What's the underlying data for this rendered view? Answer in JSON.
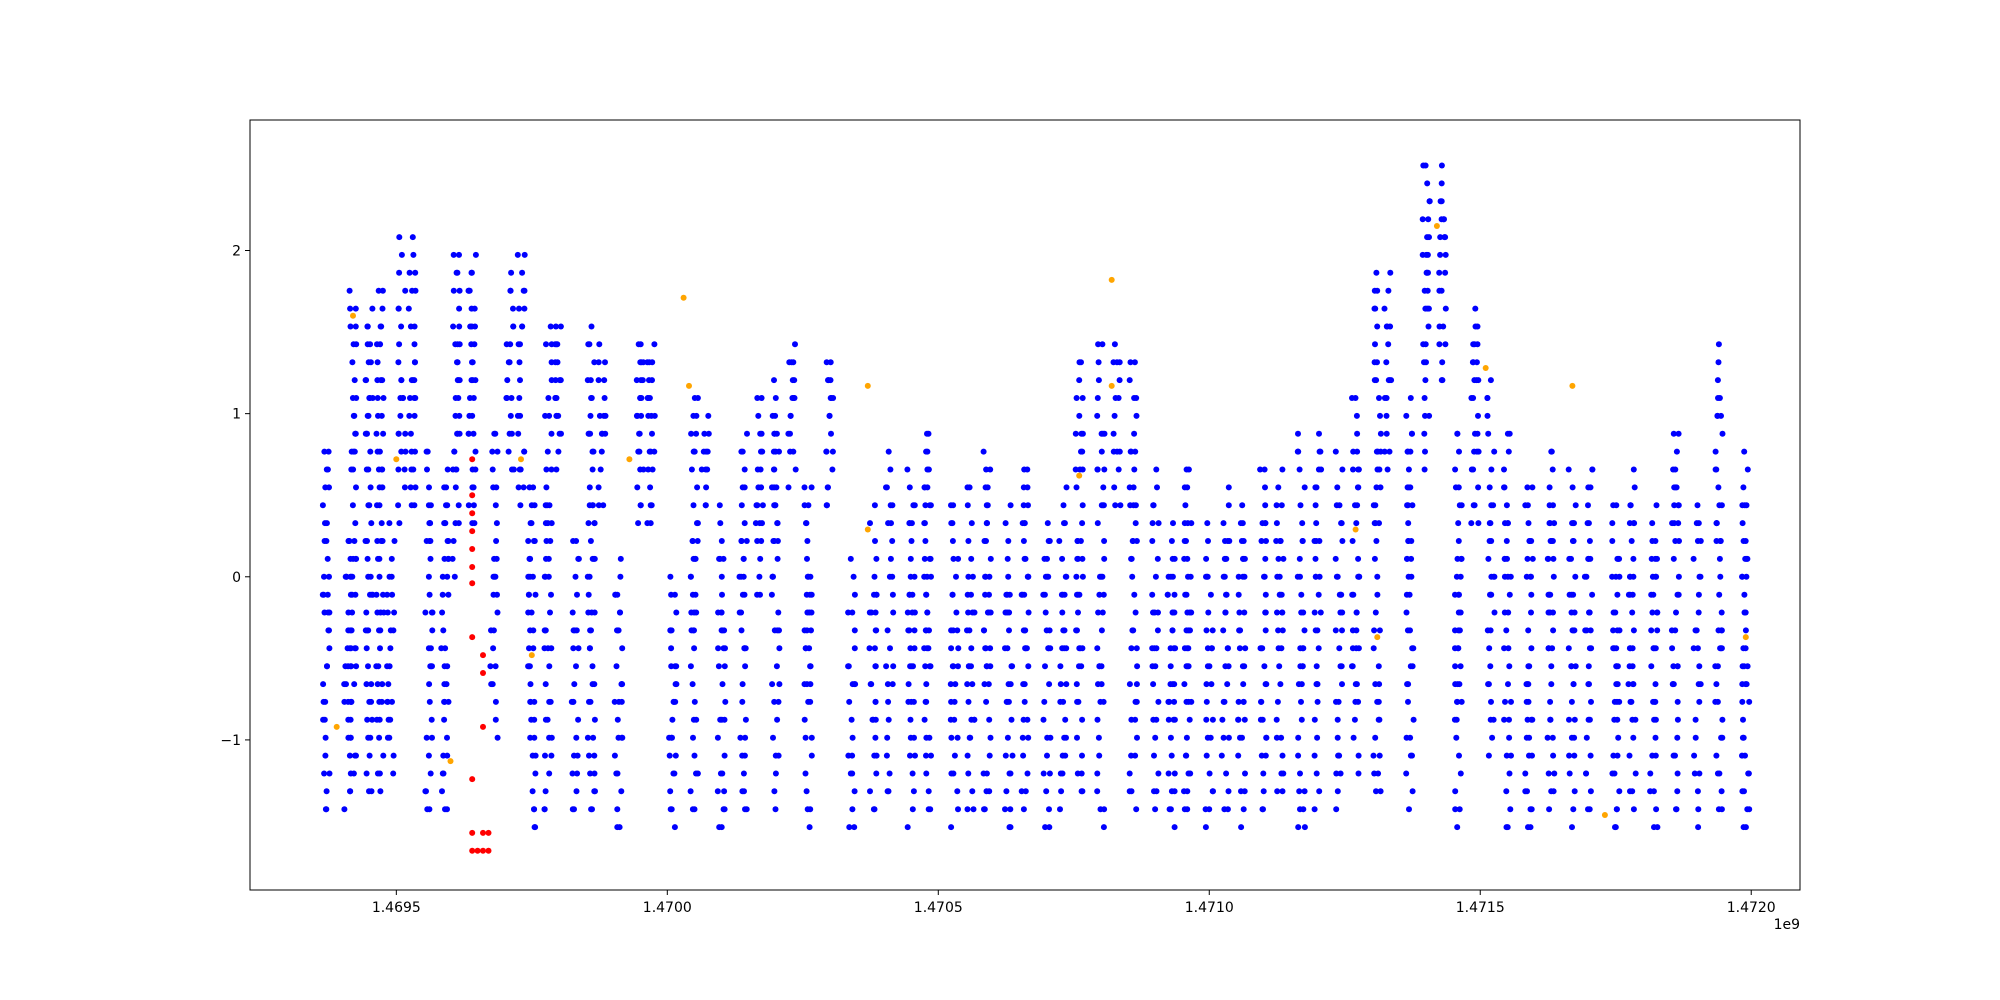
{
  "chart_data": {
    "type": "scatter",
    "title": "",
    "xlabel": "",
    "ylabel": "",
    "x_offset_label": "1e9",
    "xlim": [
      1469230000,
      1472090000
    ],
    "ylim": [
      -1.92,
      2.8
    ],
    "grid": false,
    "legend": "none",
    "x_ticks": [
      {
        "value": 1469500000,
        "label": "1.4695"
      },
      {
        "value": 1470000000,
        "label": "1.4700"
      },
      {
        "value": 1470500000,
        "label": "1.4705"
      },
      {
        "value": 1471000000,
        "label": "1.4710"
      },
      {
        "value": 1471500000,
        "label": "1.4715"
      },
      {
        "value": 1472000000,
        "label": "1.4720"
      }
    ],
    "y_ticks": [
      {
        "value": -1,
        "label": "−1"
      },
      {
        "value": 0,
        "label": "0"
      },
      {
        "value": 1,
        "label": "1"
      },
      {
        "value": 2,
        "label": "2"
      }
    ],
    "colors": {
      "normal": "#0000ff",
      "outlier_orange": "#ffa500",
      "outlier_red": "#ff0000"
    },
    "series": [
      {
        "color_key": "normal",
        "approximate": true,
        "day_columns": [
          {
            "x": 1469370000,
            "ymin": -1.45,
            "ymax": 0.85
          },
          {
            "x": 1469410000,
            "ymin": -1.45,
            "ymax": 0.3
          },
          {
            "x": 1469420000,
            "ymin": -1.4,
            "ymax": 1.82
          },
          {
            "x": 1469450000,
            "ymin": -1.4,
            "ymax": 1.75
          },
          {
            "x": 1469470000,
            "ymin": -1.35,
            "ymax": 1.82
          },
          {
            "x": 1469490000,
            "ymin": -1.3,
            "ymax": 0.4
          },
          {
            "x": 1469510000,
            "ymin": 0.3,
            "ymax": 2.15
          },
          {
            "x": 1469530000,
            "ymin": 0.4,
            "ymax": 2.15
          },
          {
            "x": 1469560000,
            "ymin": -1.45,
            "ymax": 0.85
          },
          {
            "x": 1469590000,
            "ymin": -1.45,
            "ymax": 0.7
          },
          {
            "x": 1469610000,
            "ymin": 0.0,
            "ymax": 2.05
          },
          {
            "x": 1469640000,
            "ymin": 0.3,
            "ymax": 2.05
          },
          {
            "x": 1469680000,
            "ymin": -1.0,
            "ymax": 0.95
          },
          {
            "x": 1469710000,
            "ymin": 0.6,
            "ymax": 1.95
          },
          {
            "x": 1469730000,
            "ymin": 0.4,
            "ymax": 2.05
          },
          {
            "x": 1469750000,
            "ymin": -1.55,
            "ymax": 0.6
          },
          {
            "x": 1469780000,
            "ymin": -1.5,
            "ymax": 1.6
          },
          {
            "x": 1469800000,
            "ymin": 0.6,
            "ymax": 1.6
          },
          {
            "x": 1469830000,
            "ymin": -1.5,
            "ymax": 0.3
          },
          {
            "x": 1469860000,
            "ymin": -1.5,
            "ymax": 1.6
          },
          {
            "x": 1469880000,
            "ymin": 0.4,
            "ymax": 1.5
          },
          {
            "x": 1469910000,
            "ymin": -1.55,
            "ymax": 0.2
          },
          {
            "x": 1469950000,
            "ymin": 0.3,
            "ymax": 1.5
          },
          {
            "x": 1469970000,
            "ymin": 0.3,
            "ymax": 1.5
          },
          {
            "x": 1470010000,
            "ymin": -1.55,
            "ymax": 0.1
          },
          {
            "x": 1470050000,
            "ymin": -1.45,
            "ymax": 1.2
          },
          {
            "x": 1470070000,
            "ymin": 0.4,
            "ymax": 1.0
          },
          {
            "x": 1470100000,
            "ymin": -1.55,
            "ymax": 0.5
          },
          {
            "x": 1470140000,
            "ymin": -1.5,
            "ymax": 0.9
          },
          {
            "x": 1470170000,
            "ymin": -0.2,
            "ymax": 1.15
          },
          {
            "x": 1470200000,
            "ymin": -1.5,
            "ymax": 1.3
          },
          {
            "x": 1470230000,
            "ymin": 0.5,
            "ymax": 1.5
          },
          {
            "x": 1470260000,
            "ymin": -1.55,
            "ymax": 0.6
          },
          {
            "x": 1470300000,
            "ymin": 0.4,
            "ymax": 1.4
          },
          {
            "x": 1470340000,
            "ymin": -1.55,
            "ymax": 0.2
          },
          {
            "x": 1470380000,
            "ymin": -1.5,
            "ymax": 0.5
          },
          {
            "x": 1470410000,
            "ymin": -1.4,
            "ymax": 0.85
          },
          {
            "x": 1470450000,
            "ymin": -1.55,
            "ymax": 0.7
          },
          {
            "x": 1470480000,
            "ymin": -1.5,
            "ymax": 0.95
          },
          {
            "x": 1470530000,
            "ymin": -1.55,
            "ymax": 0.45
          },
          {
            "x": 1470560000,
            "ymin": -1.5,
            "ymax": 0.55
          },
          {
            "x": 1470590000,
            "ymin": -1.45,
            "ymax": 0.85
          },
          {
            "x": 1470630000,
            "ymin": -1.55,
            "ymax": 0.5
          },
          {
            "x": 1470660000,
            "ymin": -1.5,
            "ymax": 0.75
          },
          {
            "x": 1470700000,
            "ymin": -1.55,
            "ymax": 0.35
          },
          {
            "x": 1470730000,
            "ymin": -1.5,
            "ymax": 0.6
          },
          {
            "x": 1470760000,
            "ymin": -1.4,
            "ymax": 1.4
          },
          {
            "x": 1470800000,
            "ymin": -1.55,
            "ymax": 1.5
          },
          {
            "x": 1470830000,
            "ymin": 0.4,
            "ymax": 1.5
          },
          {
            "x": 1470860000,
            "ymin": -1.5,
            "ymax": 1.4
          },
          {
            "x": 1470900000,
            "ymin": -1.45,
            "ymax": 0.75
          },
          {
            "x": 1470930000,
            "ymin": -1.55,
            "ymax": 0.4
          },
          {
            "x": 1470960000,
            "ymin": -1.5,
            "ymax": 0.75
          },
          {
            "x": 1471000000,
            "ymin": -1.55,
            "ymax": 0.4
          },
          {
            "x": 1471030000,
            "ymin": -1.45,
            "ymax": 0.6
          },
          {
            "x": 1471060000,
            "ymin": -1.55,
            "ymax": 0.5
          },
          {
            "x": 1471100000,
            "ymin": -1.5,
            "ymax": 0.7
          },
          {
            "x": 1471130000,
            "ymin": -1.4,
            "ymax": 0.75
          },
          {
            "x": 1471170000,
            "ymin": -1.55,
            "ymax": 0.95
          },
          {
            "x": 1471200000,
            "ymin": -1.5,
            "ymax": 0.95
          },
          {
            "x": 1471240000,
            "ymin": -1.45,
            "ymax": 0.8
          },
          {
            "x": 1471270000,
            "ymin": -1.3,
            "ymax": 1.2
          },
          {
            "x": 1471310000,
            "ymin": -1.4,
            "ymax": 1.95
          },
          {
            "x": 1471330000,
            "ymin": 0.6,
            "ymax": 1.95
          },
          {
            "x": 1471370000,
            "ymin": -1.45,
            "ymax": 1.2
          },
          {
            "x": 1471400000,
            "ymin": 0.6,
            "ymax": 2.6
          },
          {
            "x": 1471430000,
            "ymin": 1.2,
            "ymax": 2.6
          },
          {
            "x": 1471460000,
            "ymin": -1.55,
            "ymax": 0.9
          },
          {
            "x": 1471490000,
            "ymin": 0.3,
            "ymax": 1.75
          },
          {
            "x": 1471520000,
            "ymin": -1.2,
            "ymax": 1.3
          },
          {
            "x": 1471550000,
            "ymin": -1.55,
            "ymax": 0.95
          },
          {
            "x": 1471590000,
            "ymin": -1.55,
            "ymax": 0.6
          },
          {
            "x": 1471630000,
            "ymin": -1.5,
            "ymax": 0.85
          },
          {
            "x": 1471670000,
            "ymin": -1.55,
            "ymax": 0.75
          },
          {
            "x": 1471700000,
            "ymin": -1.5,
            "ymax": 0.75
          },
          {
            "x": 1471750000,
            "ymin": -1.55,
            "ymax": 0.5
          },
          {
            "x": 1471780000,
            "ymin": -1.5,
            "ymax": 0.75
          },
          {
            "x": 1471820000,
            "ymin": -1.55,
            "ymax": 0.5
          },
          {
            "x": 1471860000,
            "ymin": -1.45,
            "ymax": 0.95
          },
          {
            "x": 1471900000,
            "ymin": -1.55,
            "ymax": 0.45
          },
          {
            "x": 1471940000,
            "ymin": -1.5,
            "ymax": 1.5
          },
          {
            "x": 1471990000,
            "ymin": -1.55,
            "ymax": 0.85
          }
        ]
      },
      {
        "color_key": "outlier_orange",
        "points": [
          [
            1469420000,
            1.6
          ],
          [
            1469500000,
            0.72
          ],
          [
            1469390000,
            -0.92
          ],
          [
            1469600000,
            -1.13
          ],
          [
            1469730000,
            0.72
          ],
          [
            1469750000,
            -0.48
          ],
          [
            1469930000,
            0.72
          ],
          [
            1470030000,
            1.71
          ],
          [
            1470040000,
            1.17
          ],
          [
            1470370000,
            1.17
          ],
          [
            1470370000,
            0.29
          ],
          [
            1470760000,
            0.62
          ],
          [
            1470820000,
            1.82
          ],
          [
            1470820000,
            1.17
          ],
          [
            1471270000,
            0.29
          ],
          [
            1471310000,
            -0.37
          ],
          [
            1471420000,
            2.15
          ],
          [
            1471510000,
            1.28
          ],
          [
            1471670000,
            1.17
          ],
          [
            1471730000,
            -1.46
          ],
          [
            1471990000,
            -0.37
          ]
        ]
      },
      {
        "color_key": "outlier_red",
        "points": [
          [
            1469640000,
            0.72
          ],
          [
            1469640000,
            0.5
          ],
          [
            1469640000,
            0.39
          ],
          [
            1469640000,
            0.28
          ],
          [
            1469640000,
            0.17
          ],
          [
            1469640000,
            0.06
          ],
          [
            1469640000,
            -0.04
          ],
          [
            1469640000,
            -0.37
          ],
          [
            1469640000,
            -1.24
          ],
          [
            1469640000,
            -1.57
          ],
          [
            1469640000,
            -1.68
          ],
          [
            1469650000,
            -1.68
          ],
          [
            1469660000,
            -1.57
          ],
          [
            1469660000,
            -1.68
          ],
          [
            1469670000,
            -1.68
          ],
          [
            1469660000,
            -0.48
          ],
          [
            1469660000,
            -0.59
          ],
          [
            1469660000,
            -0.92
          ],
          [
            1469670000,
            -1.57
          ]
        ]
      }
    ]
  }
}
